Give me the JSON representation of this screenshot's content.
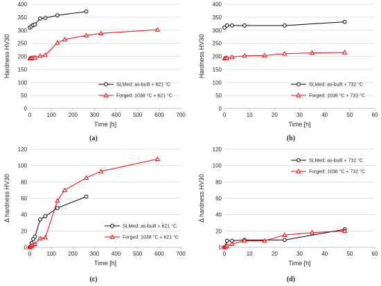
{
  "chart_data": [
    {
      "type": "line",
      "panel_label": "(a)",
      "xlabel": "Time [h]",
      "ylabel": "Hardness HV30",
      "xlim": [
        0,
        700
      ],
      "ylim": [
        0,
        400
      ],
      "xticks": [
        0,
        100,
        200,
        300,
        400,
        500,
        600,
        700
      ],
      "yticks": [
        0,
        50,
        100,
        150,
        200,
        250,
        300,
        350,
        400
      ],
      "grid": "horizontal",
      "legend_position": "bottom-right",
      "series": [
        {
          "name": "SLMed: as-built + 621 °C",
          "color": "#000000",
          "marker": "circle",
          "x": [
            0,
            8,
            16,
            24,
            48,
            72,
            128,
            262
          ],
          "y": [
            310,
            315,
            320,
            322,
            345,
            347,
            357,
            372
          ]
        },
        {
          "name": "Forged: 1038 °C + 621 °C",
          "color": "#ff0000",
          "marker": "triangle",
          "x": [
            0,
            4,
            8,
            16,
            24,
            48,
            72,
            128,
            162,
            262,
            330,
            592
          ],
          "y": [
            192,
            193,
            193,
            195,
            195,
            202,
            205,
            252,
            265,
            280,
            288,
            302
          ]
        }
      ]
    },
    {
      "type": "line",
      "panel_label": "(b)",
      "xlabel": "Time [h]",
      "ylabel": "Hardness HV30",
      "xlim": [
        0,
        60
      ],
      "ylim": [
        0,
        400
      ],
      "xticks": [
        0,
        10,
        20,
        30,
        40,
        50,
        60
      ],
      "yticks": [
        0,
        50,
        100,
        150,
        200,
        250,
        300,
        350,
        400
      ],
      "grid": "horizontal",
      "legend_position": "bottom-right",
      "series": [
        {
          "name": "SLMed: as-built + 732 °C",
          "color": "#000000",
          "marker": "circle",
          "x": [
            0,
            1,
            3,
            8,
            24,
            48
          ],
          "y": [
            310,
            318,
            318,
            318,
            318,
            332
          ]
        },
        {
          "name": "Forged: 1038 °C + 732 °C",
          "color": "#ff0000",
          "marker": "triangle",
          "x": [
            0,
            0.5,
            1,
            3,
            8,
            16,
            24,
            35,
            48
          ],
          "y": [
            192,
            193,
            194,
            197,
            202,
            203,
            210,
            213,
            215
          ]
        }
      ]
    },
    {
      "type": "line",
      "panel_label": "(c)",
      "xlabel": "Time [h]",
      "ylabel": "Δ hardness HV30",
      "xlim": [
        0,
        700
      ],
      "ylim": [
        0,
        120
      ],
      "xticks": [
        0,
        100,
        200,
        300,
        400,
        500,
        600,
        700
      ],
      "yticks": [
        0,
        20,
        40,
        60,
        80,
        100,
        120
      ],
      "grid": "horizontal",
      "legend_position": "bottom-right",
      "series": [
        {
          "name": "SLMed: as-built + 621 °C",
          "color": "#000000",
          "marker": "circle",
          "x": [
            0,
            8,
            16,
            24,
            48,
            72,
            128,
            262
          ],
          "y": [
            0,
            5,
            10,
            13,
            34,
            38,
            48,
            62
          ]
        },
        {
          "name": "Forged: 1038 °C + 621 °C",
          "color": "#ff0000",
          "marker": "triangle",
          "x": [
            0,
            4,
            8,
            16,
            24,
            48,
            72,
            128,
            162,
            262,
            330,
            592
          ],
          "y": [
            0,
            1,
            2,
            3,
            4,
            11,
            12,
            57,
            70,
            85,
            93,
            108
          ]
        }
      ]
    },
    {
      "type": "line",
      "panel_label": "(d)",
      "xlabel": "Time [h]",
      "ylabel": "Δ hardness HV30",
      "xlim": [
        0,
        60
      ],
      "ylim": [
        0,
        120
      ],
      "xticks": [
        0,
        10,
        20,
        30,
        40,
        50,
        60
      ],
      "yticks": [
        0,
        20,
        40,
        60,
        80,
        100,
        120
      ],
      "grid": "horizontal",
      "legend_position": "top-right",
      "series": [
        {
          "name": "SLMed: as-built + 732 °C",
          "color": "#000000",
          "marker": "circle",
          "x": [
            0,
            1,
            3,
            8,
            24,
            48
          ],
          "y": [
            0,
            8,
            8,
            9,
            9,
            22
          ]
        },
        {
          "name": "Forged: 1038 °C + 732 °C",
          "color": "#ff0000",
          "marker": "triangle",
          "x": [
            0,
            0.5,
            1,
            3,
            8,
            16,
            24,
            35,
            48
          ],
          "y": [
            0,
            1,
            2,
            4,
            8,
            8,
            15,
            18,
            20
          ]
        }
      ]
    }
  ],
  "colors": {
    "grid": "#d9d9d9",
    "axis": "#bfbfbf",
    "text": "#222222"
  }
}
